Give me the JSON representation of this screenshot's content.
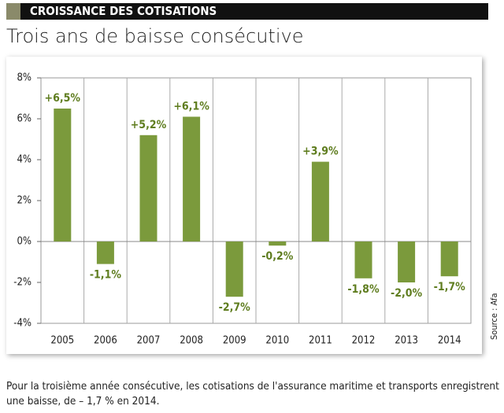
{
  "header": {
    "kicker": "CROISSANCE DES COTISATIONS",
    "title": "Trois ans de baisse consécutive"
  },
  "chart_data": {
    "type": "bar",
    "categories": [
      "2005",
      "2006",
      "2007",
      "2008",
      "2009",
      "2010",
      "2011",
      "2012",
      "2013",
      "2014"
    ],
    "values": [
      6.5,
      -1.1,
      5.2,
      6.1,
      -2.7,
      -0.2,
      3.9,
      -1.8,
      -2.0,
      -1.7
    ],
    "value_labels": [
      "+6,5%",
      "-1,1%",
      "+5,2%",
      "+6,1%",
      "-2,7%",
      "-0,2%",
      "+3,9%",
      "-1,8%",
      "-2,0%",
      "-1,7%"
    ],
    "color": "#7b9a3c",
    "ylim": [
      -4,
      8
    ],
    "yticks": [
      {
        "value": -4,
        "label": "-4%"
      },
      {
        "value": -2,
        "label": "-2%"
      },
      {
        "value": 0,
        "label": "0%"
      },
      {
        "value": 2,
        "label": "2%"
      },
      {
        "value": 4,
        "label": "4%"
      },
      {
        "value": 6,
        "label": "6%"
      },
      {
        "value": 8,
        "label": "8%"
      }
    ]
  },
  "source": "Source : Afa",
  "caption": "Pour la troisième année consécutive, les cotisations de l'assurance maritime et transports enregistrent une baisse, de – 1,7 % en 2014."
}
